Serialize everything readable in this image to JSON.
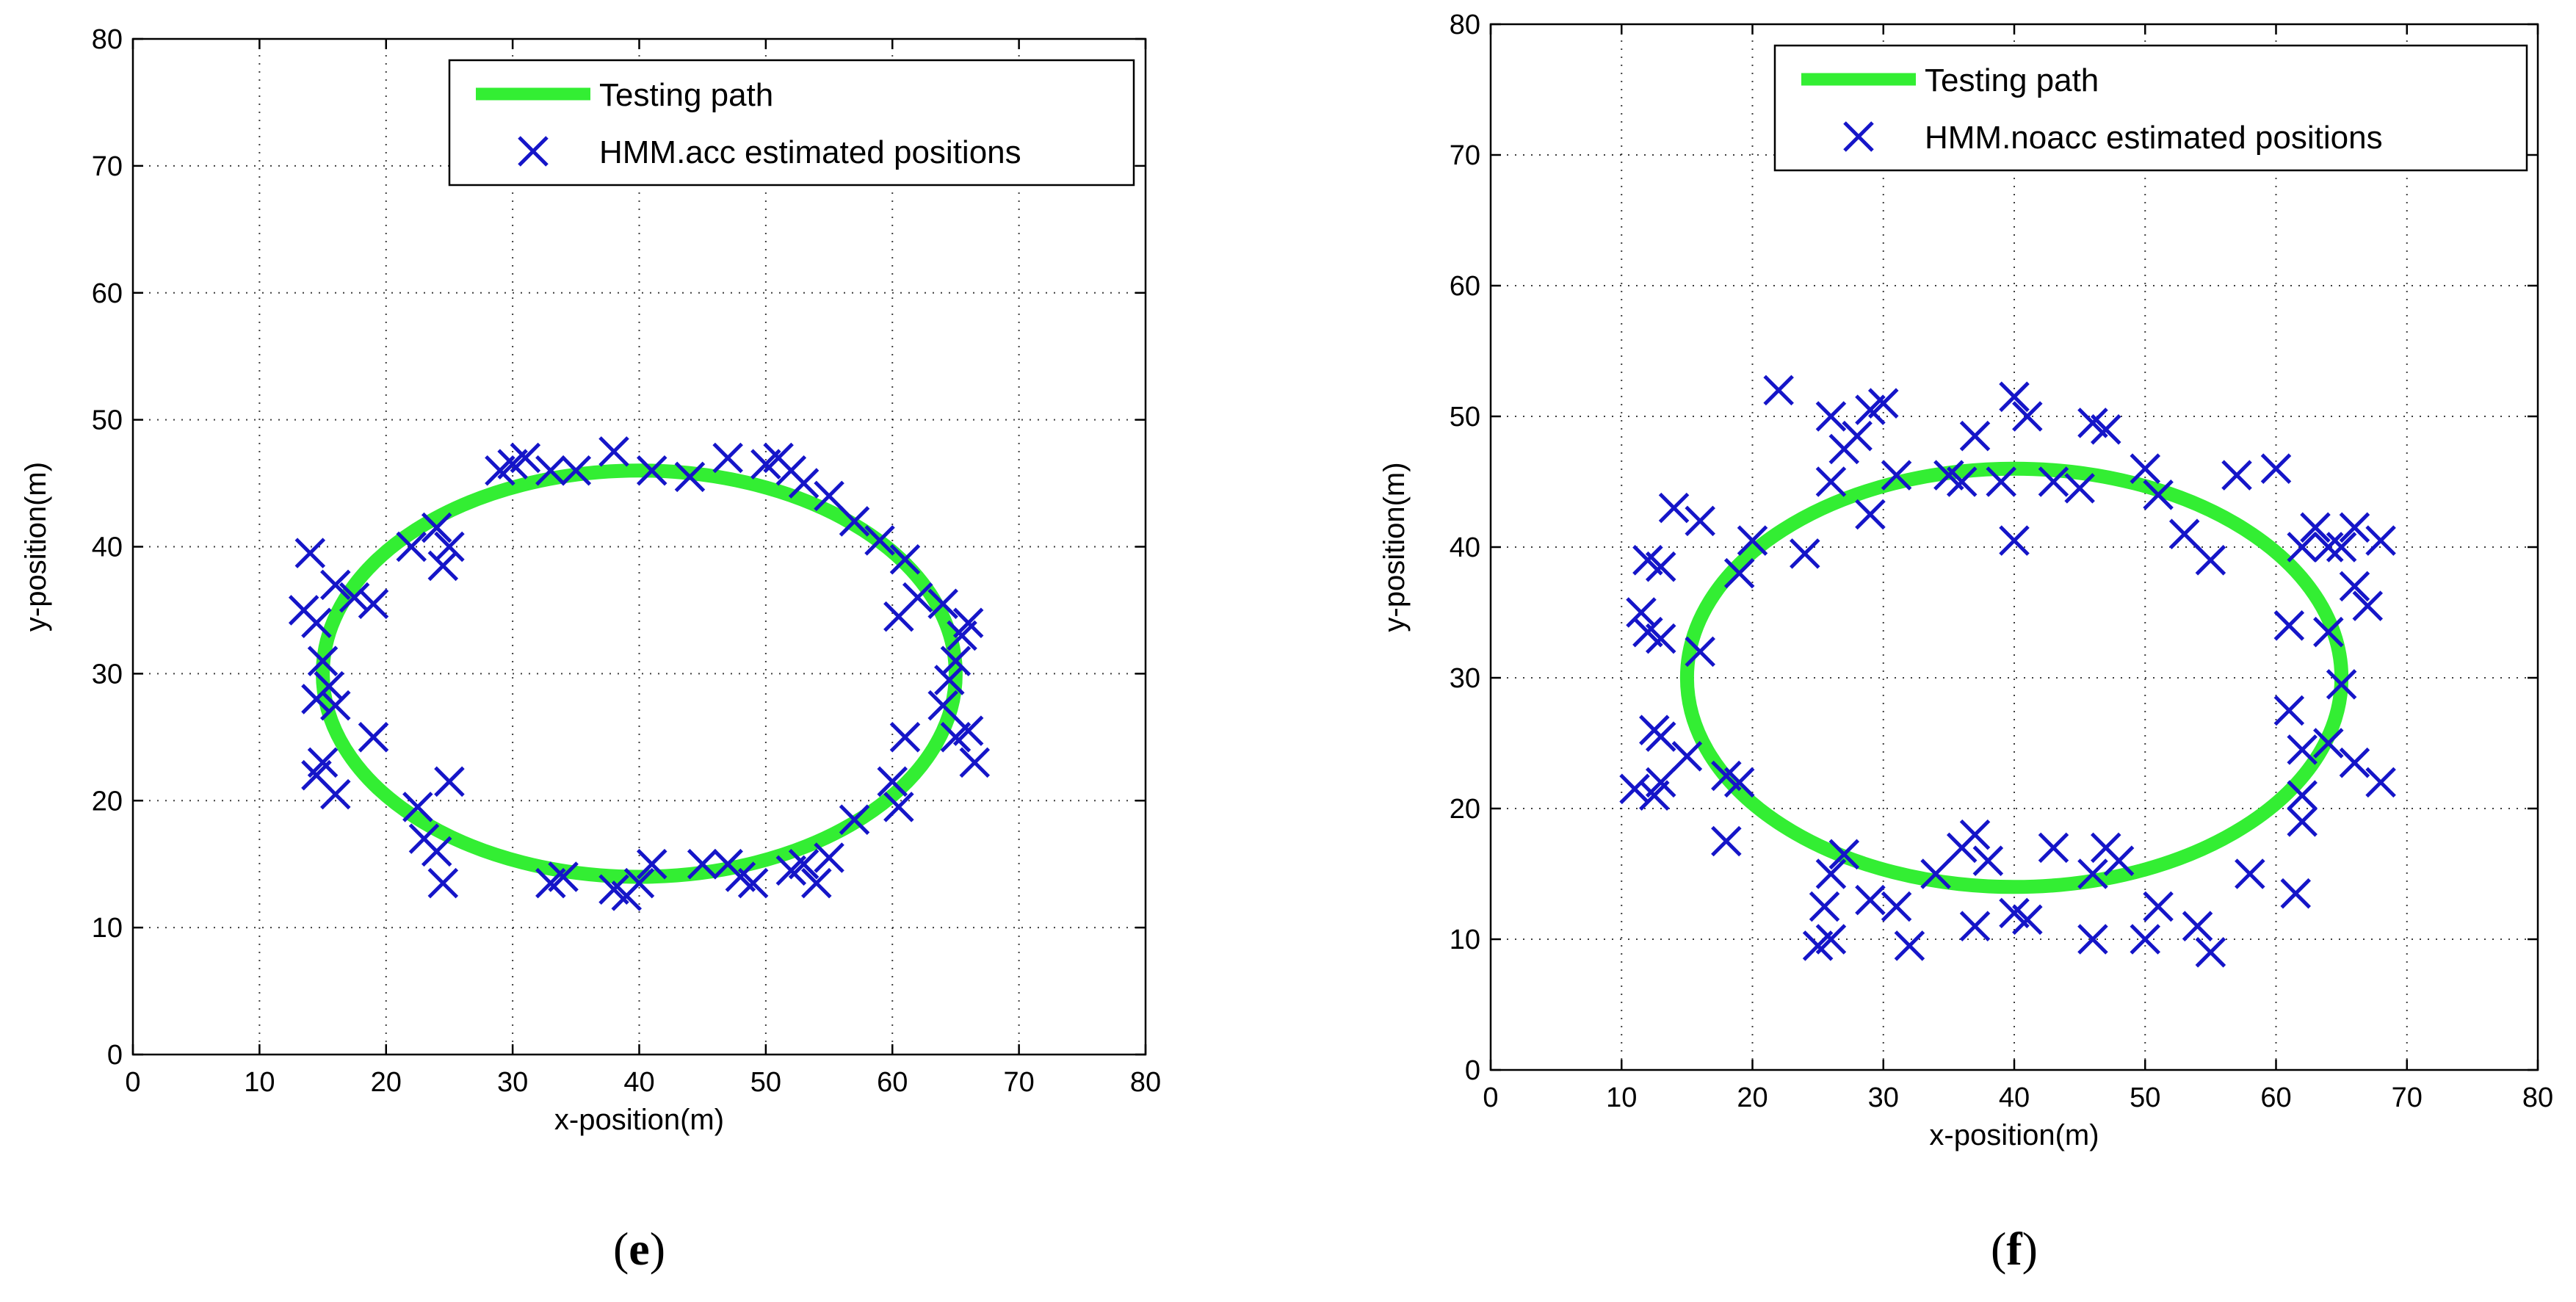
{
  "colors": {
    "path": "#33ee33",
    "marker": "#1515c8"
  },
  "chart_data": [
    {
      "type": "scatter",
      "panel_label": "e",
      "xlabel": "x-position(m)",
      "ylabel": "y-position(m)",
      "xlim": [
        0,
        80
      ],
      "ylim": [
        0,
        80
      ],
      "xticks": [
        0,
        10,
        20,
        30,
        40,
        50,
        60,
        70,
        80
      ],
      "yticks": [
        0,
        10,
        20,
        30,
        40,
        50,
        60,
        70,
        80
      ],
      "grid": true,
      "legend_position": "top-right",
      "series": [
        {
          "name": "Testing path",
          "kind": "ellipse",
          "center": [
            40,
            30
          ],
          "radii": [
            25,
            16
          ]
        },
        {
          "name": "HMM.acc estimated positions",
          "kind": "marker",
          "points": [
            [
              14,
              39.5
            ],
            [
              13.5,
              35
            ],
            [
              14.5,
              34
            ],
            [
              16,
              37
            ],
            [
              17.5,
              36
            ],
            [
              19,
              35.5
            ],
            [
              15,
              31
            ],
            [
              15.5,
              29
            ],
            [
              14.5,
              28
            ],
            [
              16,
              27.5
            ],
            [
              15,
              23
            ],
            [
              14.5,
              22
            ],
            [
              16,
              20.5
            ],
            [
              19,
              25
            ],
            [
              22,
              40
            ],
            [
              24,
              41.5
            ],
            [
              25,
              40
            ],
            [
              24.5,
              38.5
            ],
            [
              22.5,
              19.5
            ],
            [
              23,
              17
            ],
            [
              24,
              16
            ],
            [
              24.5,
              13.5
            ],
            [
              25,
              21.5
            ],
            [
              29,
              46
            ],
            [
              30,
              46.5
            ],
            [
              31,
              47
            ],
            [
              33,
              46
            ],
            [
              35,
              46
            ],
            [
              38,
              47.5
            ],
            [
              41,
              46
            ],
            [
              44,
              45.5
            ],
            [
              47,
              47
            ],
            [
              50,
              46.5
            ],
            [
              51,
              47
            ],
            [
              52,
              46
            ],
            [
              53,
              45
            ],
            [
              55,
              44
            ],
            [
              57,
              42
            ],
            [
              59,
              40.5
            ],
            [
              61,
              39
            ],
            [
              60.5,
              34.5
            ],
            [
              62,
              36
            ],
            [
              64,
              35.5
            ],
            [
              65.5,
              33
            ],
            [
              66,
              34
            ],
            [
              65,
              31
            ],
            [
              64,
              27.5
            ],
            [
              64.5,
              29.5
            ],
            [
              65,
              25
            ],
            [
              66,
              25.5
            ],
            [
              66.5,
              23
            ],
            [
              61,
              25
            ],
            [
              60,
              21.5
            ],
            [
              60.5,
              19.5
            ],
            [
              57,
              18.5
            ],
            [
              55,
              15.5
            ],
            [
              54,
              13.5
            ],
            [
              53,
              15
            ],
            [
              52,
              14.5
            ],
            [
              49,
              13.5
            ],
            [
              48,
              14
            ],
            [
              47,
              15
            ],
            [
              45,
              15
            ],
            [
              41,
              15
            ],
            [
              40,
              13.5
            ],
            [
              39,
              12.5
            ],
            [
              38,
              13
            ],
            [
              34,
              14
            ],
            [
              33,
              13.5
            ]
          ]
        }
      ]
    },
    {
      "type": "scatter",
      "panel_label": "f",
      "xlabel": "x-position(m)",
      "ylabel": "y-position(m)",
      "xlim": [
        0,
        80
      ],
      "ylim": [
        0,
        80
      ],
      "xticks": [
        0,
        10,
        20,
        30,
        40,
        50,
        60,
        70,
        80
      ],
      "yticks": [
        0,
        10,
        20,
        30,
        40,
        50,
        60,
        70,
        80
      ],
      "grid": true,
      "legend_position": "top-right",
      "series": [
        {
          "name": "Testing path",
          "kind": "ellipse",
          "center": [
            40,
            30
          ],
          "radii": [
            25,
            16
          ]
        },
        {
          "name": "HMM.noacc estimated positions",
          "kind": "marker",
          "points": [
            [
              22,
              52
            ],
            [
              26,
              50
            ],
            [
              29,
              50.5
            ],
            [
              30,
              51
            ],
            [
              40,
              51.5
            ],
            [
              41,
              50
            ],
            [
              46,
              49.5
            ],
            [
              47,
              49
            ],
            [
              28,
              48.5
            ],
            [
              27,
              47.5
            ],
            [
              37,
              48.5
            ],
            [
              36,
              45
            ],
            [
              35,
              45.5
            ],
            [
              39,
              45
            ],
            [
              43,
              45
            ],
            [
              45,
              44.5
            ],
            [
              50,
              46
            ],
            [
              51,
              44
            ],
            [
              26,
              45
            ],
            [
              29,
              42.5
            ],
            [
              31,
              45.5
            ],
            [
              53,
              41
            ],
            [
              55,
              39
            ],
            [
              57,
              45.5
            ],
            [
              60,
              46
            ],
            [
              14,
              43
            ],
            [
              16,
              42
            ],
            [
              20,
              40.5
            ],
            [
              24,
              39.5
            ],
            [
              19,
              38
            ],
            [
              12,
              39
            ],
            [
              13,
              38.5
            ],
            [
              11.5,
              35
            ],
            [
              12,
              33.5
            ],
            [
              13,
              33
            ],
            [
              16,
              32
            ],
            [
              12.5,
              26
            ],
            [
              13,
              25.5
            ],
            [
              15,
              24
            ],
            [
              13,
              22
            ],
            [
              11,
              21.5
            ],
            [
              12.5,
              21
            ],
            [
              18,
              22.5
            ],
            [
              19,
              22
            ],
            [
              18,
              17.5
            ],
            [
              40,
              40.5
            ],
            [
              62,
              40
            ],
            [
              63,
              41.5
            ],
            [
              64,
              40
            ],
            [
              65,
              40
            ],
            [
              66,
              41.5
            ],
            [
              66,
              37
            ],
            [
              67,
              35.5
            ],
            [
              68,
              40.5
            ],
            [
              61,
              34
            ],
            [
              64,
              33.5
            ],
            [
              65,
              29.5
            ],
            [
              61,
              27.5
            ],
            [
              62,
              24.5
            ],
            [
              64,
              25
            ],
            [
              66,
              23.5
            ],
            [
              68,
              22
            ],
            [
              62,
              21
            ],
            [
              62,
              19
            ],
            [
              61.5,
              13.5
            ],
            [
              58,
              15
            ],
            [
              54,
              11
            ],
            [
              55,
              9
            ],
            [
              51,
              12.5
            ],
            [
              50,
              10
            ],
            [
              47,
              17
            ],
            [
              48,
              16
            ],
            [
              46,
              15
            ],
            [
              43,
              17
            ],
            [
              41,
              11.5
            ],
            [
              40,
              12
            ],
            [
              37,
              18
            ],
            [
              38,
              16
            ],
            [
              36,
              17
            ],
            [
              34,
              15
            ],
            [
              37,
              11
            ],
            [
              31,
              12.5
            ],
            [
              32,
              9.5
            ],
            [
              29,
              13
            ],
            [
              27,
              16.5
            ],
            [
              26,
              15
            ],
            [
              25.5,
              12.5
            ],
            [
              26,
              10
            ],
            [
              25,
              9.5
            ],
            [
              46,
              10
            ]
          ]
        }
      ]
    }
  ]
}
